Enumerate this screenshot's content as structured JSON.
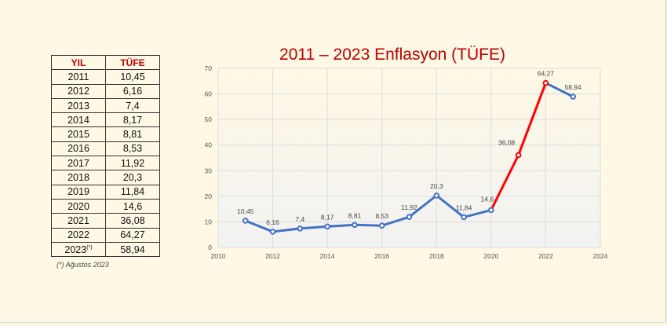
{
  "table": {
    "headers": [
      "YIL",
      "TÜFE"
    ],
    "rows": [
      [
        "2011",
        "10,45"
      ],
      [
        "2012",
        "6,16"
      ],
      [
        "2013",
        "7,4"
      ],
      [
        "2014",
        "8,17"
      ],
      [
        "2015",
        "8,81"
      ],
      [
        "2016",
        "8,53"
      ],
      [
        "2017",
        "11,92"
      ],
      [
        "2018",
        "20,3"
      ],
      [
        "2019",
        "11,84"
      ],
      [
        "2020",
        "14,6"
      ],
      [
        "2021",
        "36,08"
      ],
      [
        "2022",
        "64,27"
      ],
      [
        "2023",
        "58,94"
      ]
    ],
    "last_year_marker": "(*)"
  },
  "footnote": "(*) Ağustos 2023",
  "chart_data": {
    "type": "line",
    "title": "2011 – 2023 Enflasyon (TÜFE)",
    "xlabel": "",
    "ylabel": "",
    "x": [
      2011,
      2012,
      2013,
      2014,
      2015,
      2016,
      2017,
      2018,
      2019,
      2020,
      2021,
      2022,
      2023
    ],
    "values": [
      10.45,
      6.16,
      7.4,
      8.17,
      8.81,
      8.53,
      11.92,
      20.3,
      11.84,
      14.6,
      36.08,
      64.27,
      58.94
    ],
    "labels": [
      "10,45",
      "6,16",
      "7,4",
      "8,17",
      "8,81",
      "8,53",
      "11,92",
      "20,3",
      "11,84",
      "14,6",
      "36,08",
      "64,27",
      "58,94"
    ],
    "xlim": [
      2010,
      2024
    ],
    "ylim": [
      0,
      70
    ],
    "xticks": [
      "2010",
      "2012",
      "2014",
      "2016",
      "2018",
      "2020",
      "2022",
      "2024"
    ],
    "yticks": [
      "0",
      "10",
      "20",
      "30",
      "40",
      "50",
      "60",
      "70"
    ],
    "grid": true,
    "colors": {
      "line": "#4472c4",
      "highlight": "#ff0000"
    },
    "highlight_range": [
      2020,
      2022
    ]
  }
}
